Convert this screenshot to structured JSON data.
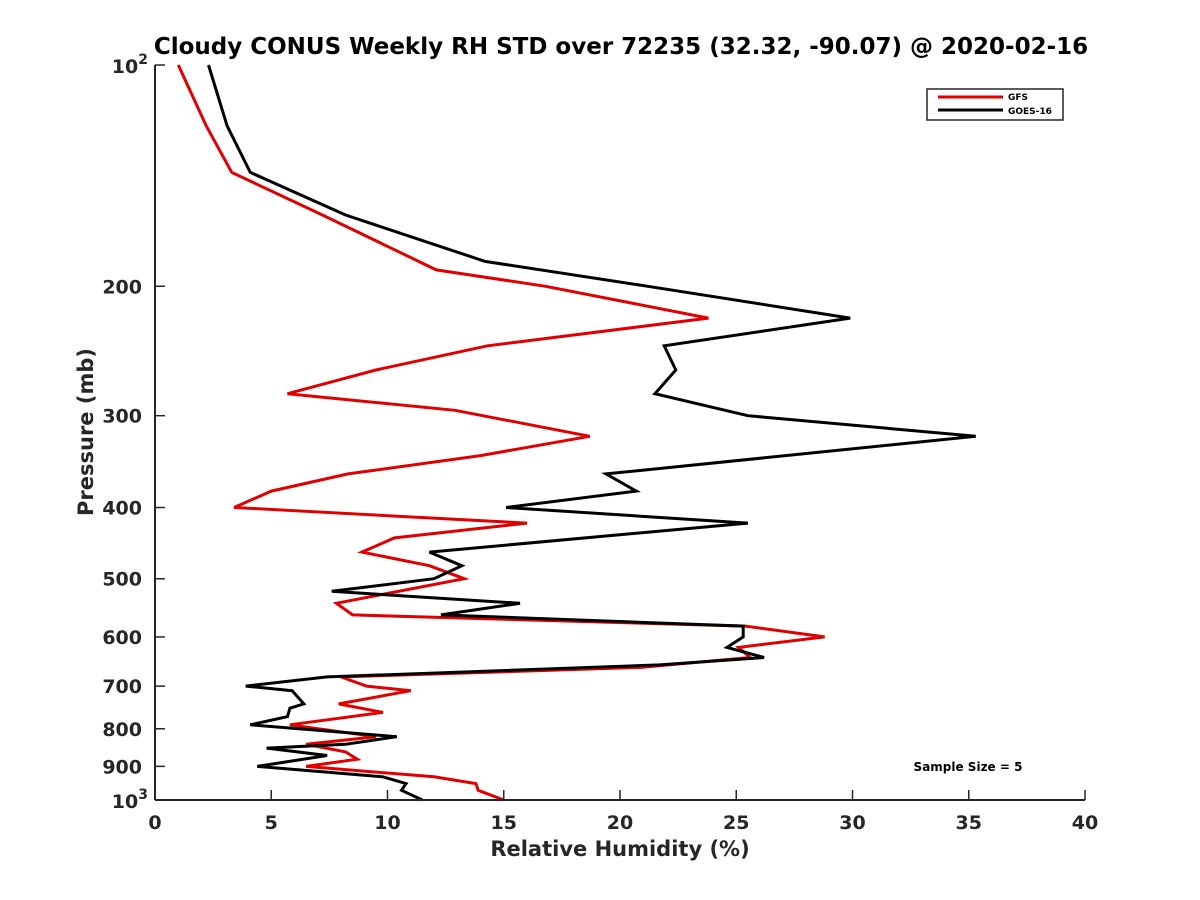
{
  "chart_data": {
    "type": "line",
    "title": "Cloudy CONUS Weekly RH STD over 72235 (32.32, -90.07) @ 2020-02-16",
    "xlabel": "Relative Humidity (%)",
    "ylabel": "Pressure (mb)",
    "xlim": [
      0,
      40
    ],
    "ylim": [
      100,
      1000
    ],
    "yscale": "log",
    "yreversed": true,
    "grid": false,
    "xticks": [
      0,
      5,
      10,
      15,
      20,
      25,
      30,
      35,
      40
    ],
    "xtick_labels": [
      "0",
      "5",
      "10",
      "15",
      "20",
      "25",
      "30",
      "35",
      "40"
    ],
    "yticks": [
      {
        "value": 100,
        "label_base": "10",
        "label_exp": "2"
      },
      {
        "value": 200,
        "label": "200"
      },
      {
        "value": 300,
        "label": "300"
      },
      {
        "value": 400,
        "label": "400"
      },
      {
        "value": 500,
        "label": "500"
      },
      {
        "value": 600,
        "label": "600"
      },
      {
        "value": 700,
        "label": "700"
      },
      {
        "value": 800,
        "label": "800"
      },
      {
        "value": 900,
        "label": "900"
      },
      {
        "value": 1000,
        "label_base": "10",
        "label_exp": "3"
      }
    ],
    "legend": {
      "position": "top-right",
      "entries": [
        "GFS",
        "GOES-16"
      ]
    },
    "annotation": "Sample Size = 5",
    "series": [
      {
        "name": "GFS",
        "color": "#e00000",
        "points": [
          [
            1.0,
            100
          ],
          [
            2.2,
            121
          ],
          [
            3.3,
            140
          ],
          [
            7.2,
            160
          ],
          [
            12.1,
            190
          ],
          [
            16.8,
            200
          ],
          [
            23.8,
            221
          ],
          [
            14.3,
            241
          ],
          [
            9.5,
            260
          ],
          [
            5.7,
            280
          ],
          [
            12.9,
            295
          ],
          [
            18.7,
            320
          ],
          [
            14.0,
            340
          ],
          [
            8.3,
            360
          ],
          [
            5.0,
            380
          ],
          [
            3.4,
            400
          ],
          [
            16.0,
            420
          ],
          [
            10.3,
            440
          ],
          [
            8.9,
            460
          ],
          [
            11.8,
            480
          ],
          [
            13.3,
            500
          ],
          [
            7.8,
            540
          ],
          [
            8.5,
            560
          ],
          [
            25.4,
            580
          ],
          [
            28.8,
            600
          ],
          [
            25.1,
            620
          ],
          [
            25.6,
            640
          ],
          [
            20.9,
            660
          ],
          [
            8.0,
            680
          ],
          [
            9.1,
            700
          ],
          [
            11.0,
            710
          ],
          [
            7.9,
            740
          ],
          [
            9.8,
            760
          ],
          [
            5.8,
            790
          ],
          [
            9.5,
            820
          ],
          [
            6.5,
            840
          ],
          [
            8.2,
            860
          ],
          [
            8.7,
            880
          ],
          [
            6.5,
            900
          ],
          [
            12.0,
            930
          ],
          [
            13.8,
            950
          ],
          [
            13.9,
            970
          ],
          [
            15.0,
            1000
          ]
        ]
      },
      {
        "name": "GOES-16",
        "color": "#000000",
        "points": [
          [
            2.3,
            100
          ],
          [
            3.1,
            121
          ],
          [
            4.1,
            140
          ],
          [
            8.2,
            160
          ],
          [
            14.2,
            185
          ],
          [
            21.2,
            200
          ],
          [
            29.9,
            221
          ],
          [
            21.9,
            241
          ],
          [
            22.4,
            260
          ],
          [
            21.5,
            280
          ],
          [
            25.5,
            300
          ],
          [
            35.3,
            320
          ],
          [
            19.4,
            360
          ],
          [
            20.7,
            380
          ],
          [
            15.1,
            400
          ],
          [
            25.5,
            420
          ],
          [
            11.8,
            460
          ],
          [
            13.2,
            480
          ],
          [
            12.0,
            500
          ],
          [
            7.6,
            520
          ],
          [
            15.7,
            540
          ],
          [
            12.3,
            560
          ],
          [
            25.3,
            580
          ],
          [
            25.3,
            600
          ],
          [
            24.6,
            620
          ],
          [
            26.2,
            640
          ],
          [
            21.7,
            655
          ],
          [
            7.4,
            680
          ],
          [
            3.9,
            700
          ],
          [
            5.9,
            710
          ],
          [
            6.4,
            740
          ],
          [
            5.8,
            750
          ],
          [
            5.7,
            770
          ],
          [
            4.1,
            790
          ],
          [
            10.4,
            820
          ],
          [
            8.2,
            840
          ],
          [
            4.8,
            850
          ],
          [
            7.4,
            870
          ],
          [
            4.4,
            900
          ],
          [
            9.8,
            930
          ],
          [
            10.8,
            950
          ],
          [
            10.6,
            970
          ],
          [
            11.5,
            1000
          ]
        ]
      }
    ]
  }
}
